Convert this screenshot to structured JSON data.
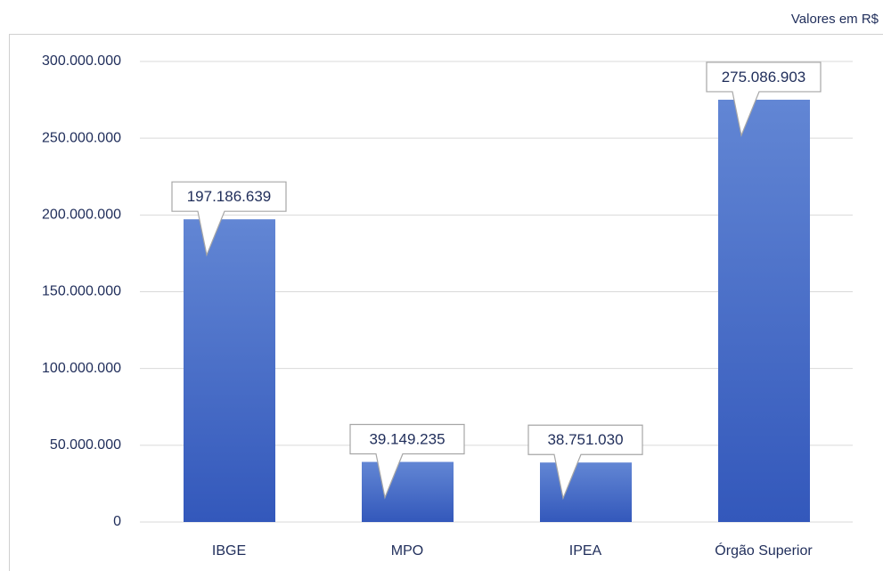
{
  "chart_data": {
    "type": "bar",
    "annotation": "Valores em R$",
    "categories": [
      "IBGE",
      "MPO",
      "IPEA",
      "Órgão Superior"
    ],
    "values": [
      197186639,
      39149235,
      38751030,
      275086903
    ],
    "value_labels": [
      "197.186.639",
      "39.149.235",
      "38.751.030",
      "275.086.903"
    ],
    "color": "#3d65c2",
    "ylim": [
      0,
      300000000
    ],
    "yticks": [
      0,
      {
        "value": 50000000,
        "label": "50.000.000"
      },
      {
        "value": 100000000,
        "label": "100.000.000"
      },
      {
        "value": 150000000,
        "label": "150.000.000"
      },
      {
        "value": 200000000,
        "label": "200.000.000"
      },
      {
        "value": 250000000,
        "label": "250.000.000"
      },
      {
        "value": 300000000,
        "label": "300.000.000"
      }
    ],
    "grid": true
  }
}
